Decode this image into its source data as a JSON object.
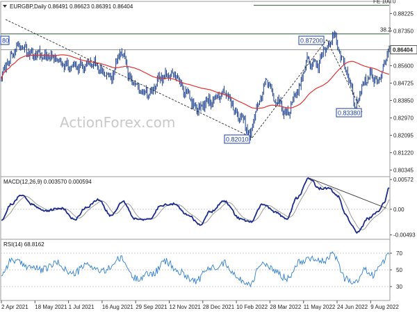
{
  "chart_data": [
    {
      "type": "ohlc",
      "title": "EURGBP,Daily  0.86491 0.86623 0.86391 0.86404",
      "last_price_label": "0.86404",
      "ylim": [
        0.8005,
        0.888
      ],
      "y_ticks": [
        "0.88225",
        "0.87350",
        "0.86475",
        "0.85600",
        "0.84725",
        "0.83850",
        "0.82970",
        "0.82095",
        "0.81220",
        "0.80345"
      ],
      "annotations": [
        {
          "text": "0.87200",
          "y": 0.872
        },
        {
          "text": "0.83380",
          "y": 0.8338
        },
        {
          "text": "0.82010",
          "y": 0.8201
        },
        {
          "text": "0.8720"
        },
        {
          "text": "38.2"
        },
        {
          "text": "FE 100.0"
        },
        {
          "text": "80"
        }
      ],
      "overlay": {
        "name": "SMA (55)",
        "color": "#e53030"
      },
      "colors": {
        "bars": "#1b3f8c",
        "sma": "#e53030",
        "trendline": "#2a2a2a",
        "fib_line": "#2d5a3d",
        "border": "#9a9a9a"
      },
      "anchors": [
        {
          "t": 0,
          "p": 0.85
        },
        {
          "t": 6,
          "p": 0.858
        },
        {
          "t": 18,
          "p": 0.866
        },
        {
          "t": 30,
          "p": 0.862
        },
        {
          "t": 50,
          "p": 0.86
        },
        {
          "t": 70,
          "p": 0.855
        },
        {
          "t": 90,
          "p": 0.857
        },
        {
          "t": 108,
          "p": 0.85
        },
        {
          "t": 118,
          "p": 0.862
        },
        {
          "t": 130,
          "p": 0.847
        },
        {
          "t": 145,
          "p": 0.842
        },
        {
          "t": 158,
          "p": 0.85
        },
        {
          "t": 170,
          "p": 0.852
        },
        {
          "t": 182,
          "p": 0.843
        },
        {
          "t": 192,
          "p": 0.835
        },
        {
          "t": 206,
          "p": 0.838
        },
        {
          "t": 220,
          "p": 0.842
        },
        {
          "t": 236,
          "p": 0.83
        },
        {
          "t": 246,
          "p": 0.8215
        },
        {
          "t": 252,
          "p": 0.835
        },
        {
          "t": 262,
          "p": 0.848
        },
        {
          "t": 272,
          "p": 0.838
        },
        {
          "t": 282,
          "p": 0.832
        },
        {
          "t": 292,
          "p": 0.843
        },
        {
          "t": 302,
          "p": 0.858
        },
        {
          "t": 312,
          "p": 0.856
        },
        {
          "t": 320,
          "p": 0.865
        },
        {
          "t": 328,
          "p": 0.8705
        },
        {
          "t": 338,
          "p": 0.858
        },
        {
          "t": 345,
          "p": 0.846
        },
        {
          "t": 350,
          "p": 0.835
        },
        {
          "t": 356,
          "p": 0.846
        },
        {
          "t": 364,
          "p": 0.851
        },
        {
          "t": 372,
          "p": 0.848
        },
        {
          "t": 378,
          "p": 0.856
        },
        {
          "t": 383,
          "p": 0.864
        }
      ],
      "lows": [
        {
          "text": "0.82010",
          "t": 246
        },
        {
          "text": "0.83380",
          "t": 350
        }
      ],
      "highs": [
        {
          "text": "0.87200",
          "t": 328
        }
      ],
      "x_ticks": [
        "2 Apr 2021",
        "18 May 2021",
        "1 Jul 2021",
        "16 Aug 2021",
        "29 Sep 2021",
        "12 Nov 2021",
        "28 Dec 2021",
        "10 Feb 2022",
        "28 Mar 2022",
        "11 May 2022",
        "24 Jun 2022",
        "9 Aug 2022"
      ]
    },
    {
      "type": "line",
      "title": "MACD(12,26,9) 0.003570 0.000594",
      "ylim": [
        -0.0055,
        0.006
      ],
      "y_ticks": [
        "0.00572",
        "0.00",
        "-0.00493"
      ],
      "series": [
        {
          "name": "MACD",
          "color": "#1a2a8c"
        },
        {
          "name": "Signal",
          "color": "#9a9a9a"
        }
      ],
      "anchors": [
        {
          "t": 0,
          "v": -0.002
        },
        {
          "t": 10,
          "v": 0.001
        },
        {
          "t": 20,
          "v": 0.0028
        },
        {
          "t": 30,
          "v": 0.001
        },
        {
          "t": 42,
          "v": -0.0003
        },
        {
          "t": 60,
          "v": 0.0002
        },
        {
          "t": 72,
          "v": -0.002
        },
        {
          "t": 84,
          "v": 0.0004
        },
        {
          "t": 96,
          "v": 0.0018
        },
        {
          "t": 108,
          "v": -0.0012
        },
        {
          "t": 120,
          "v": 0.0015
        },
        {
          "t": 132,
          "v": -0.0018
        },
        {
          "t": 146,
          "v": -0.002
        },
        {
          "t": 158,
          "v": 0.0008
        },
        {
          "t": 170,
          "v": 0.001
        },
        {
          "t": 184,
          "v": -0.001
        },
        {
          "t": 196,
          "v": -0.003
        },
        {
          "t": 206,
          "v": -0.0005
        },
        {
          "t": 220,
          "v": 0.0015
        },
        {
          "t": 236,
          "v": -0.0018
        },
        {
          "t": 246,
          "v": -0.0025
        },
        {
          "t": 258,
          "v": 0.001
        },
        {
          "t": 270,
          "v": -0.0005
        },
        {
          "t": 282,
          "v": -0.0018
        },
        {
          "t": 292,
          "v": 0.0022
        },
        {
          "t": 304,
          "v": 0.006
        },
        {
          "t": 314,
          "v": 0.004
        },
        {
          "t": 324,
          "v": 0.004
        },
        {
          "t": 332,
          "v": 0.0025
        },
        {
          "t": 340,
          "v": -0.001
        },
        {
          "t": 346,
          "v": -0.003
        },
        {
          "t": 352,
          "v": -0.0045
        },
        {
          "t": 362,
          "v": -0.0018
        },
        {
          "t": 372,
          "v": -0.0005
        },
        {
          "t": 378,
          "v": 0.0012
        },
        {
          "t": 383,
          "v": 0.0042
        }
      ],
      "trendline_color": "#333333"
    },
    {
      "type": "line",
      "title": "RSI(14) 68.8162",
      "ylim": [
        15,
        85
      ],
      "y_ticks": [
        "70",
        "50",
        "30"
      ],
      "levels": [
        70,
        50,
        30
      ],
      "series": [
        {
          "name": "RSI",
          "color": "#2f7fd0"
        }
      ],
      "anchors": [
        {
          "t": 0,
          "v": 45
        },
        {
          "t": 10,
          "v": 62
        },
        {
          "t": 25,
          "v": 55
        },
        {
          "t": 40,
          "v": 50
        },
        {
          "t": 55,
          "v": 58
        },
        {
          "t": 70,
          "v": 45
        },
        {
          "t": 85,
          "v": 56
        },
        {
          "t": 100,
          "v": 48
        },
        {
          "t": 118,
          "v": 63
        },
        {
          "t": 132,
          "v": 40
        },
        {
          "t": 150,
          "v": 46
        },
        {
          "t": 162,
          "v": 60
        },
        {
          "t": 176,
          "v": 47
        },
        {
          "t": 192,
          "v": 37
        },
        {
          "t": 206,
          "v": 52
        },
        {
          "t": 220,
          "v": 58
        },
        {
          "t": 236,
          "v": 38
        },
        {
          "t": 246,
          "v": 33
        },
        {
          "t": 256,
          "v": 58
        },
        {
          "t": 268,
          "v": 50
        },
        {
          "t": 282,
          "v": 40
        },
        {
          "t": 294,
          "v": 60
        },
        {
          "t": 306,
          "v": 65
        },
        {
          "t": 318,
          "v": 60
        },
        {
          "t": 328,
          "v": 68
        },
        {
          "t": 340,
          "v": 40
        },
        {
          "t": 350,
          "v": 34
        },
        {
          "t": 358,
          "v": 50
        },
        {
          "t": 366,
          "v": 44
        },
        {
          "t": 374,
          "v": 55
        },
        {
          "t": 383,
          "v": 69
        }
      ]
    }
  ],
  "watermark": "ActionForex.com"
}
